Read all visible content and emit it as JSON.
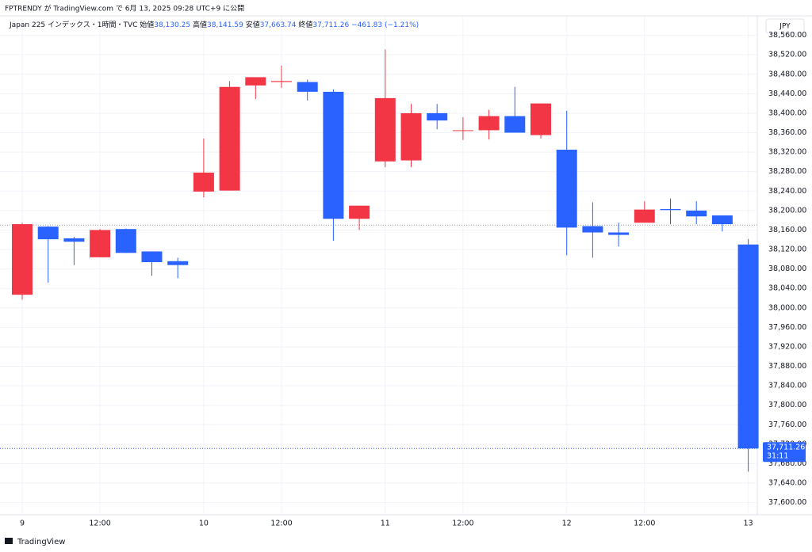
{
  "header": {
    "published": "FPTRENDY が TradingView.com で 6月 13, 2025 09:28 UTC+9 に公開",
    "symbol": "Japan 225 インデックス・1時間・TVC",
    "open_label": "始値",
    "open_value": "38,130.25",
    "high_label": "高値",
    "high_value": "38,141.59",
    "low_label": "安値",
    "low_value": "37,663.74",
    "close_label": "終値",
    "close_value": "37,711.26",
    "change": "−461.83 (−1.21%)",
    "currency": "JPY"
  },
  "chart_data": {
    "type": "candlestick",
    "categories": [
      "9",
      null,
      null,
      "12:00",
      null,
      null,
      null,
      "10",
      null,
      null,
      "12:00",
      null,
      null,
      null,
      "11",
      null,
      null,
      "12:00",
      null,
      null,
      null,
      "12",
      null,
      null,
      "12:00",
      null,
      null,
      null,
      "13"
    ],
    "open": [
      38027,
      38167,
      38143,
      38104,
      38162,
      38116,
      38096,
      38239,
      38241,
      38457,
      38464,
      38464,
      38444,
      38183,
      38301,
      38303,
      38400,
      38365,
      38365,
      38394,
      38355,
      38325,
      38168,
      38155,
      38175,
      38203,
      38200,
      38190,
      38130.25
    ],
    "high": [
      38175,
      38168,
      38146,
      38162,
      38163,
      38116,
      38103,
      38348,
      38466,
      38474,
      38498,
      38469,
      38449,
      38210,
      38531,
      38419,
      38419,
      38392,
      38407,
      38454,
      38420,
      38405,
      38217,
      38175,
      38219,
      38225,
      38219,
      38190,
      38141.59
    ],
    "low": [
      38017,
      38052,
      38088,
      38104,
      38113,
      38066,
      38061,
      38227,
      38241,
      38429,
      38452,
      38426,
      38138,
      38160,
      38289,
      38289,
      38367,
      38345,
      38346,
      38360,
      38348,
      38108,
      38103,
      38126,
      38175,
      38172,
      38172,
      38157,
      37663.74
    ],
    "close": [
      38172,
      38141,
      38136,
      38160,
      38113,
      38094,
      38088,
      38278,
      38454,
      38474,
      38466,
      38444,
      38183,
      38210,
      38431,
      38400,
      38385,
      38365,
      38394,
      38360,
      38420,
      38165,
      38155,
      38150,
      38202,
      38201,
      38188,
      38172,
      37711.26
    ],
    "up_color": "#f23645",
    "down_color": "#2962ff",
    "prev_close": 38170,
    "last_price_label": "37,711.26",
    "countdown": "31:11",
    "ylim": [
      37575,
      38600
    ],
    "yticks": [
      {
        "value": 37600,
        "label": "37,600.00"
      },
      {
        "value": 37640,
        "label": "37,640.00"
      },
      {
        "value": 37680,
        "label": "37,680.00"
      },
      {
        "value": 37720,
        "label": "37,720.00"
      },
      {
        "value": 37760,
        "label": "37,760.00"
      },
      {
        "value": 37800,
        "label": "37,800.00"
      },
      {
        "value": 37840,
        "label": "37,840.00"
      },
      {
        "value": 37880,
        "label": "37,880.00"
      },
      {
        "value": 37920,
        "label": "37,920.00"
      },
      {
        "value": 37960,
        "label": "37,960.00"
      },
      {
        "value": 38000,
        "label": "38,000.00"
      },
      {
        "value": 38040,
        "label": "38,040.00"
      },
      {
        "value": 38080,
        "label": "38,080.00"
      },
      {
        "value": 38120,
        "label": "38,120.00"
      },
      {
        "value": 38160,
        "label": "38,160.00"
      },
      {
        "value": 38200,
        "label": "38,200.00"
      },
      {
        "value": 38240,
        "label": "38,240.00"
      },
      {
        "value": 38280,
        "label": "38,280.00"
      },
      {
        "value": 38320,
        "label": "38,320.00"
      },
      {
        "value": 38360,
        "label": "38,360.00"
      },
      {
        "value": 38400,
        "label": "38,400.00"
      },
      {
        "value": 38440,
        "label": "38,440.00"
      },
      {
        "value": 38480,
        "label": "38,480.00"
      },
      {
        "value": 38520,
        "label": "38,520.00"
      },
      {
        "value": 38560,
        "label": "38,560.00"
      }
    ],
    "grid": true
  },
  "footer": {
    "brand": "TradingView"
  }
}
